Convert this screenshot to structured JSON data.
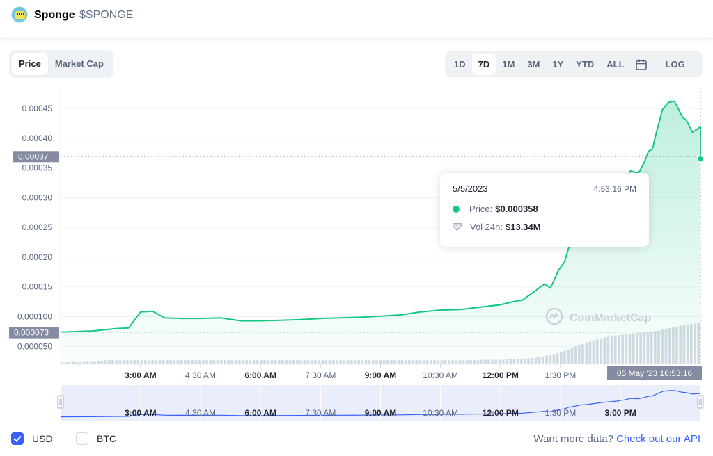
{
  "header": {
    "coin_name": "Sponge",
    "coin_symbol": "$SPONGE"
  },
  "tabs_left": [
    {
      "label": "Price",
      "active": true
    },
    {
      "label": "Market Cap",
      "active": false
    }
  ],
  "range_buttons": [
    {
      "label": "1D",
      "active": false
    },
    {
      "label": "7D",
      "active": true
    },
    {
      "label": "1M",
      "active": false
    },
    {
      "label": "3M",
      "active": false
    },
    {
      "label": "1Y",
      "active": false
    },
    {
      "label": "YTD",
      "active": false
    },
    {
      "label": "ALL",
      "active": false
    }
  ],
  "log_label": "LOG",
  "tooltip": {
    "date": "5/5/2023",
    "time": "4:53:16 PM",
    "price_label": "Price:",
    "price_value": "$0.000358",
    "vol_label": "Vol 24h:",
    "vol_value": "$13.34M"
  },
  "watermark": "CoinMarketCap",
  "footer": {
    "usd_label": "USD",
    "usd_checked": true,
    "btc_label": "BTC",
    "btc_checked": false,
    "more_text": "Want more data?",
    "api_link": "Check out our API"
  },
  "colors": {
    "line": "#16c784",
    "accent": "#3861fb",
    "navigator_fill": "#e9edfc",
    "volume": "#d6dbe4"
  },
  "chart_data": {
    "type": "line",
    "y_ticks": [
      "0.000050",
      "0.000100",
      "0.00015",
      "0.00020",
      "0.00025",
      "0.00030",
      "0.00035",
      "0.00040",
      "0.00045"
    ],
    "ylim": [
      2e-05,
      0.000485
    ],
    "x_ticks": [
      {
        "label": "3:00 AM",
        "hour": 3,
        "bold": true
      },
      {
        "label": "4:30 AM",
        "hour": 4.5,
        "bold": false
      },
      {
        "label": "6:00 AM",
        "hour": 6,
        "bold": true
      },
      {
        "label": "7:30 AM",
        "hour": 7.5,
        "bold": false
      },
      {
        "label": "9:00 AM",
        "hour": 9,
        "bold": true
      },
      {
        "label": "10:30 AM",
        "hour": 10.5,
        "bold": false
      },
      {
        "label": "12:00 PM",
        "hour": 12,
        "bold": true
      },
      {
        "label": "1:30 PM",
        "hour": 13.5,
        "bold": false
      }
    ],
    "xlim": [
      1.0,
      17.0
    ],
    "navigator_ticks": [
      {
        "label": "3:00 AM",
        "hour": 3,
        "bold": true
      },
      {
        "label": "4:30 AM",
        "hour": 4.5,
        "bold": false
      },
      {
        "label": "6:00 AM",
        "hour": 6,
        "bold": true
      },
      {
        "label": "7:30 AM",
        "hour": 7.5,
        "bold": false
      },
      {
        "label": "9:00 AM",
        "hour": 9,
        "bold": true
      },
      {
        "label": "10:30 AM",
        "hour": 10.5,
        "bold": false
      },
      {
        "label": "12:00 PM",
        "hour": 12,
        "bold": true
      },
      {
        "label": "1:30 PM",
        "hour": 13.5,
        "bold": false
      },
      {
        "label": "3:00 PM",
        "hour": 15,
        "bold": true
      }
    ],
    "series": [
      {
        "x": [
          1.0,
          1.8,
          2.4,
          2.7,
          3.0,
          3.3,
          3.6,
          4.0,
          4.5,
          5.0,
          5.5,
          6.0,
          6.5,
          7.0,
          7.5,
          8.0,
          8.5,
          9.0,
          9.5,
          10.0,
          10.5,
          11.0,
          11.5,
          12.0,
          12.3,
          12.55,
          12.8,
          13.0,
          13.1,
          13.25,
          13.45,
          13.6,
          13.7,
          13.85,
          14.0,
          14.15,
          14.35,
          14.5,
          14.7,
          14.9,
          15.1,
          15.25,
          15.45,
          15.6,
          15.7,
          15.8,
          15.9,
          16.05,
          16.2,
          16.35,
          16.45,
          16.55,
          16.65,
          16.8,
          16.92,
          17.0
        ],
        "y": [
          7.4e-05,
          7.6e-05,
          8e-05,
          8.1e-05,
          0.000108,
          0.000109,
          9.8e-05,
          9.7e-05,
          9.7e-05,
          9.8e-05,
          9.3e-05,
          9.3e-05,
          9.4e-05,
          9.5e-05,
          9.7e-05,
          9.8e-05,
          9.9e-05,
          0.000101,
          0.000103,
          0.000108,
          0.000111,
          0.000112,
          0.000116,
          0.00012,
          0.000125,
          0.000128,
          0.00014,
          0.00015,
          0.000155,
          0.000148,
          0.000178,
          0.000192,
          0.000215,
          0.00023,
          0.00025,
          0.000255,
          0.00027,
          0.000285,
          0.000295,
          0.000305,
          0.000325,
          0.000345,
          0.000341,
          0.00036,
          0.000378,
          0.000382,
          0.00041,
          0.000448,
          0.00046,
          0.000462,
          0.000449,
          0.000435,
          0.00043,
          0.00041,
          0.000415,
          0.00042
        ]
      }
    ],
    "current_value": {
      "label": "0.00037",
      "y": 0.000369
    },
    "start_value": {
      "label": "0.000073",
      "y": 7.3e-05
    },
    "end_point_y": 0.000365,
    "crosshair_time_label": "05 May '23   16:53:16",
    "volume": [
      0.05,
      0.05,
      0.05,
      0.06,
      0.05,
      0.06,
      0.06,
      0.07,
      0.06,
      0.06,
      0.07,
      0.08,
      0.1,
      0.1,
      0.1,
      0.1,
      0.1,
      0.1,
      0.1,
      0.1,
      0.1,
      0.1,
      0.1,
      0.1,
      0.1,
      0.1,
      0.1,
      0.1,
      0.1,
      0.1,
      0.1,
      0.1,
      0.1,
      0.1,
      0.1,
      0.1,
      0.1,
      0.1,
      0.1,
      0.1,
      0.1,
      0.1,
      0.1,
      0.1,
      0.1,
      0.1,
      0.1,
      0.1,
      0.1,
      0.1,
      0.1,
      0.1,
      0.1,
      0.1,
      0.1,
      0.1,
      0.1,
      0.1,
      0.1,
      0.1,
      0.1,
      0.1,
      0.1,
      0.1,
      0.1,
      0.1,
      0.1,
      0.1,
      0.1,
      0.1,
      0.1,
      0.1,
      0.1,
      0.1,
      0.1,
      0.1,
      0.1,
      0.1,
      0.1,
      0.1,
      0.1,
      0.1,
      0.1,
      0.1,
      0.1,
      0.1,
      0.1,
      0.1,
      0.1,
      0.1,
      0.1,
      0.1,
      0.1,
      0.1,
      0.1,
      0.1,
      0.1,
      0.1,
      0.1,
      0.1,
      0.1,
      0.1,
      0.1,
      0.1,
      0.1,
      0.1,
      0.1,
      0.1,
      0.1,
      0.1,
      0.1,
      0.1,
      0.1,
      0.1,
      0.1,
      0.1,
      0.11,
      0.11,
      0.11,
      0.11,
      0.11,
      0.11,
      0.11,
      0.12,
      0.12,
      0.12,
      0.13,
      0.13,
      0.14,
      0.14,
      0.15,
      0.16,
      0.17,
      0.19,
      0.21,
      0.23,
      0.25,
      0.27,
      0.3,
      0.33,
      0.36,
      0.4,
      0.43,
      0.46,
      0.49,
      0.52,
      0.55,
      0.58,
      0.6,
      0.63,
      0.65,
      0.67,
      0.69,
      0.7,
      0.71,
      0.72,
      0.73,
      0.74,
      0.75,
      0.76,
      0.77,
      0.78,
      0.79,
      0.8,
      0.81,
      0.82,
      0.84,
      0.86,
      0.88,
      0.9,
      0.92,
      0.94,
      0.96,
      0.97,
      0.98,
      0.99,
      1.0
    ]
  }
}
